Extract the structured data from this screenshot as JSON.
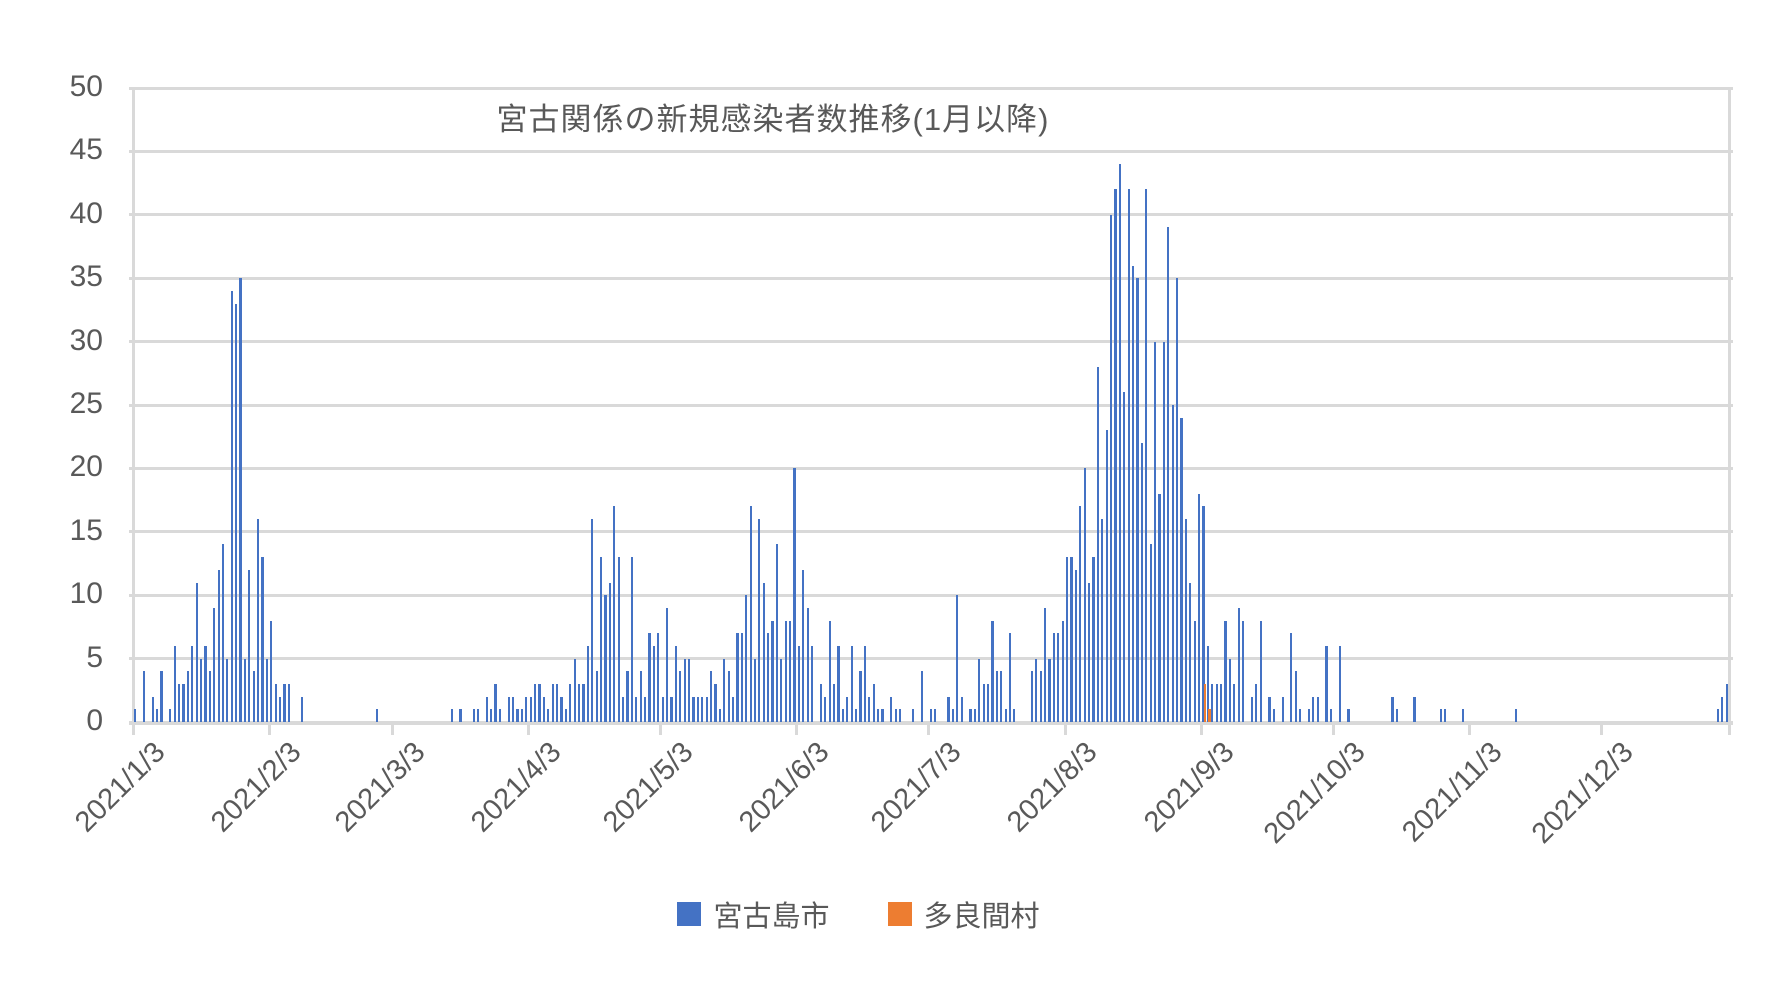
{
  "chart_data": {
    "type": "bar",
    "title": "宮古関係の新規感染者数推移(1月以降)",
    "start_date": "2021/1/3",
    "end_date": "2021/12/31",
    "grid": true,
    "legend_position": "bottom",
    "y_axis": {
      "min": 0,
      "max": 50,
      "step": 5,
      "tick_labels": [
        "0",
        "5",
        "10",
        "15",
        "20",
        "25",
        "30",
        "35",
        "40",
        "45",
        "50"
      ]
    },
    "x_axis": {
      "tick_labels": [
        "2021/1/3",
        "2021/2/3",
        "2021/3/3",
        "2021/4/3",
        "2021/5/3",
        "2021/6/3",
        "2021/7/3",
        "2021/8/3",
        "2021/9/3",
        "2021/10/3",
        "2021/11/3",
        "2021/12/3"
      ],
      "tick_day_indices": [
        0,
        31,
        59,
        90,
        120,
        151,
        181,
        212,
        243,
        273,
        304,
        334
      ]
    },
    "series": [
      {
        "name": "宮古島市",
        "color": "#4472C4",
        "values": [
          1,
          0,
          4,
          0,
          2,
          1,
          4,
          0,
          1,
          6,
          3,
          3,
          4,
          6,
          11,
          5,
          6,
          4,
          9,
          12,
          14,
          5,
          34,
          33,
          35,
          5,
          12,
          4,
          16,
          13,
          5,
          8,
          3,
          2,
          3,
          3,
          0,
          0,
          2,
          0,
          0,
          0,
          0,
          0,
          0,
          0,
          0,
          0,
          0,
          0,
          0,
          0,
          0,
          0,
          0,
          1,
          0,
          0,
          0,
          0,
          0,
          0,
          0,
          0,
          0,
          0,
          0,
          0,
          0,
          0,
          0,
          0,
          1,
          0,
          1,
          0,
          0,
          1,
          1,
          0,
          2,
          1,
          3,
          1,
          0,
          2,
          2,
          1,
          1,
          2,
          2,
          3,
          3,
          2,
          1,
          3,
          3,
          2,
          1,
          3,
          5,
          3,
          3,
          6,
          16,
          4,
          13,
          10,
          11,
          17,
          13,
          2,
          4,
          13,
          2,
          4,
          2,
          7,
          6,
          7,
          2,
          9,
          2,
          6,
          4,
          5,
          5,
          2,
          2,
          2,
          2,
          4,
          3,
          1,
          5,
          4,
          2,
          7,
          7,
          10,
          17,
          5,
          16,
          11,
          7,
          8,
          14,
          5,
          8,
          8,
          20,
          6,
          12,
          9,
          6,
          0,
          3,
          2,
          8,
          3,
          6,
          1,
          2,
          6,
          1,
          4,
          6,
          2,
          3,
          1,
          1,
          0,
          2,
          1,
          1,
          0,
          0,
          1,
          0,
          4,
          0,
          1,
          1,
          0,
          0,
          2,
          1,
          10,
          2,
          0,
          1,
          1,
          5,
          3,
          3,
          8,
          4,
          4,
          1,
          7,
          1,
          0,
          0,
          0,
          4,
          5,
          4,
          9,
          5,
          7,
          7,
          8,
          13,
          13,
          12,
          17,
          20,
          11,
          13,
          28,
          16,
          23,
          40,
          42,
          44,
          26,
          42,
          36,
          35,
          22,
          42,
          14,
          30,
          18,
          30,
          39,
          25,
          35,
          24,
          16,
          11,
          8,
          18,
          17,
          6,
          3,
          3,
          3,
          8,
          5,
          3,
          9,
          8,
          0,
          2,
          3,
          8,
          0,
          2,
          1,
          0,
          2,
          0,
          7,
          4,
          1,
          0,
          1,
          2,
          2,
          0,
          6,
          1,
          0,
          6,
          0,
          1,
          0,
          0,
          0,
          0,
          0,
          0,
          0,
          0,
          0,
          2,
          1,
          0,
          0,
          0,
          2,
          0,
          0,
          0,
          0,
          0,
          1,
          1,
          0,
          0,
          0,
          1,
          0,
          0,
          0,
          0,
          0,
          0,
          0,
          0,
          0,
          0,
          0,
          1,
          0,
          0,
          0,
          0,
          0,
          0,
          0,
          0,
          0,
          0,
          0,
          0,
          0,
          0,
          0,
          0,
          0,
          0,
          0,
          0,
          0,
          0,
          0,
          0,
          0,
          0,
          0,
          0,
          0,
          0,
          0,
          0,
          0,
          0,
          0,
          0,
          0,
          0,
          0,
          0,
          0,
          0,
          0,
          0,
          0,
          1,
          2,
          3
        ]
      },
      {
        "name": "多良間村",
        "color": "#ED7D31",
        "values_sparse": [
          {
            "day_index": 243,
            "date": "2021/9/3",
            "value": 3
          },
          {
            "day_index": 244,
            "date": "2021/9/4",
            "value": 1
          }
        ]
      }
    ]
  },
  "legend": {
    "items": [
      {
        "label": "宮古島市",
        "color": "#4472C4"
      },
      {
        "label": "多良間村",
        "color": "#ED7D31"
      }
    ]
  },
  "colors": {
    "gridline": "#d9d9d9",
    "axis_text": "#595959",
    "title_text": "#595959",
    "background": "#ffffff"
  }
}
